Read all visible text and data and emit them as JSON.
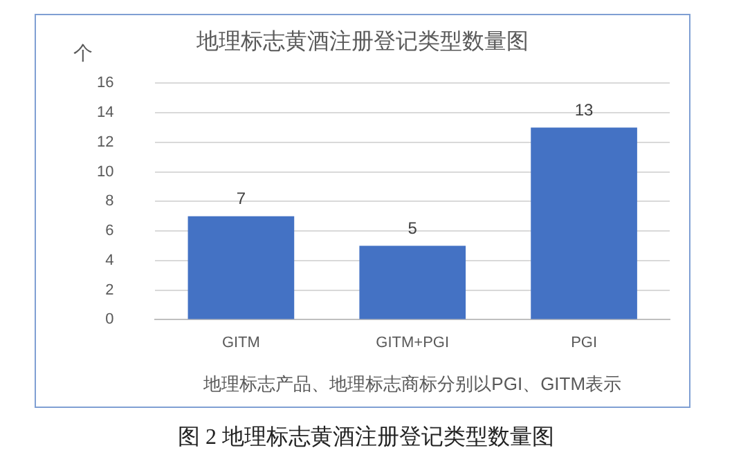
{
  "chart_data": {
    "type": "bar",
    "title": "地理标志黄酒注册登记类型数量图",
    "ylabel": "个",
    "xlabel": "地理标志产品、地理标志商标分别以PGI、GITM表示",
    "categories": [
      "GITM",
      "GITM+PGI",
      "PGI"
    ],
    "values": [
      7,
      5,
      13
    ],
    "color": "#4472c4",
    "ylim": [
      0,
      16
    ],
    "yticks": [
      0,
      2,
      4,
      6,
      8,
      10,
      12,
      14,
      16
    ],
    "grid": "y",
    "data_labels": true,
    "annotations": [
      "图 2  地理标志黄酒注册登记类型数量图"
    ]
  }
}
